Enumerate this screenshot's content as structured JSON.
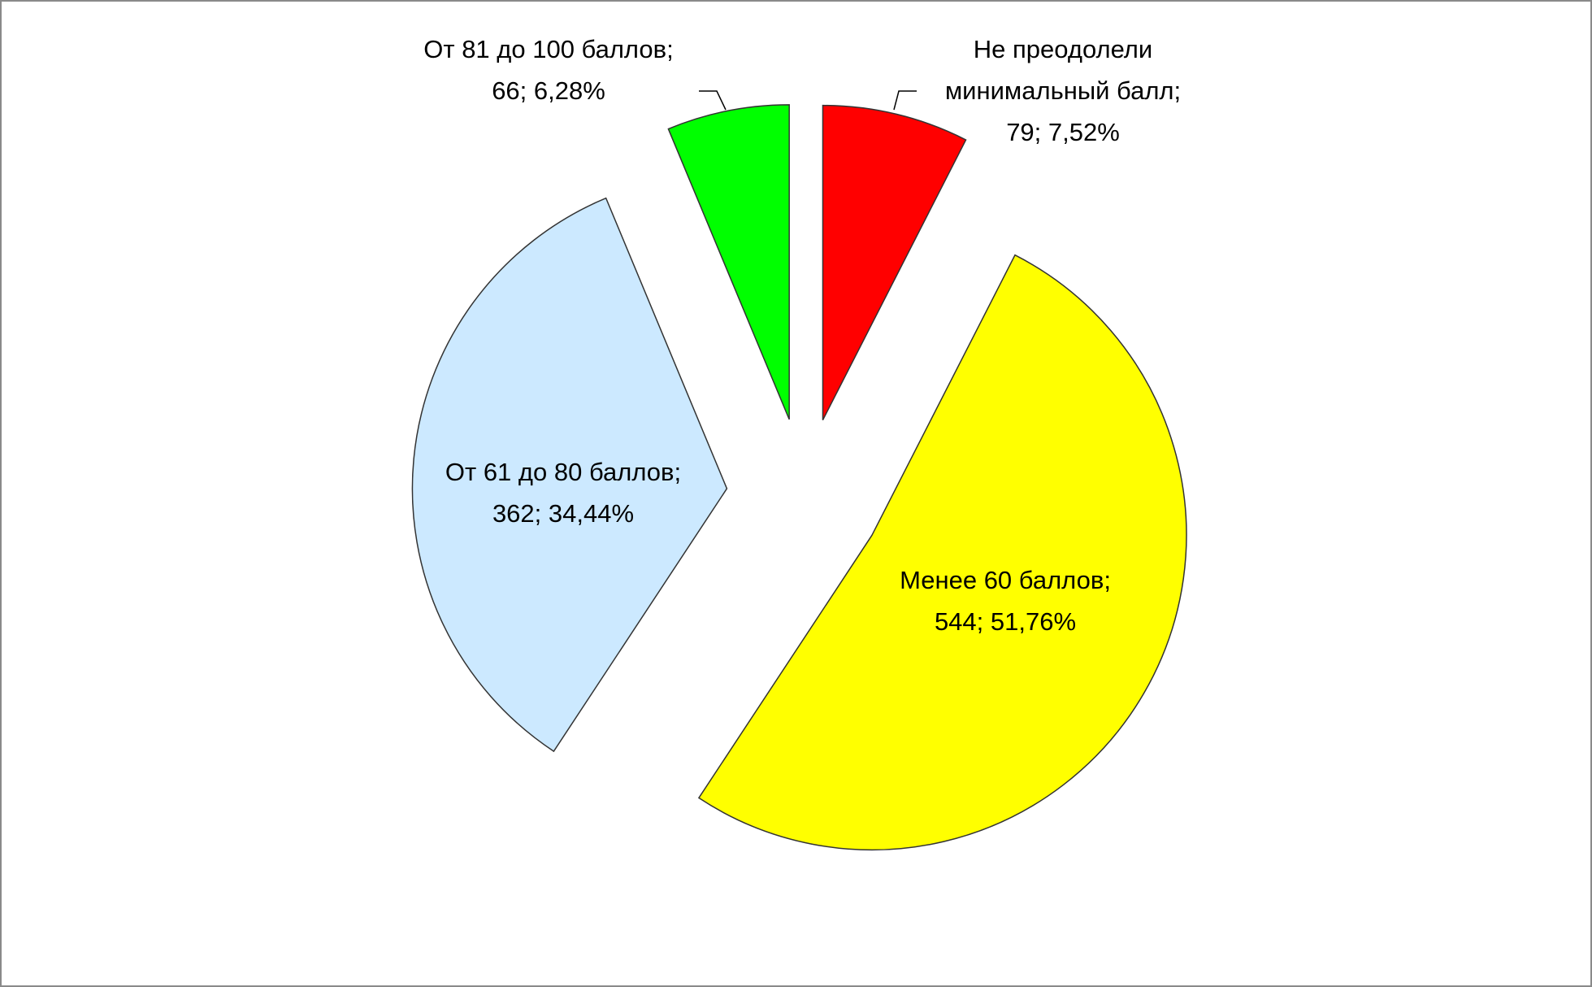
{
  "chart_data": {
    "type": "pie",
    "categories": [
      "Не преодолели минимальный балл",
      "Менее 60 баллов",
      "От 61 до 80 баллов",
      "От 81 до 100 баллов"
    ],
    "values": [
      79,
      544,
      362,
      66
    ],
    "percentages": [
      7.52,
      51.76,
      34.44,
      6.28
    ],
    "percentage_labels": [
      "7,52%",
      "51,76%",
      "34,44%",
      "6,28%"
    ],
    "colors": [
      "#ff0000",
      "#ffff00",
      "#cce9ff",
      "#00ff00"
    ]
  }
}
